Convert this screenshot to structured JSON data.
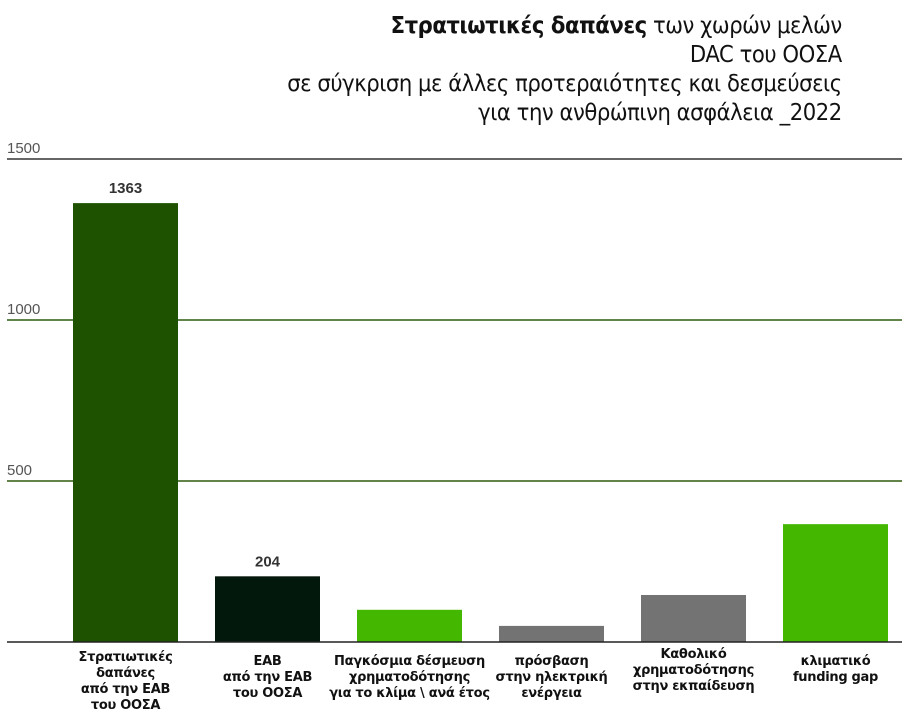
{
  "chart_data": {
    "type": "bar",
    "title_bold": "Στρατιωτικές δαπάνες",
    "title_rest": " των χωρών μελών",
    "title_lines": [
      "DAC του ΟΟΣΑ",
      "σε σύγκριση με άλλες προτεραιότητες και δεσμεύσεις",
      "για την ανθρώπινη ασφάλεια _2022"
    ],
    "categories": [
      [
        "Στρατιωτικές",
        "δαπάνες",
        "από την ΕΑΒ",
        "του ΟΟΣΑ"
      ],
      [
        "ΕΑΒ",
        "από την ΕΑΒ",
        "του ΟΟΣΑ"
      ],
      [
        "Παγκόσμια δέσμευση",
        "χρηματοδότησης",
        "για το κλίμα \\ ανά έτος"
      ],
      [
        "πρόσβαση",
        "στην ηλεκτρική",
        "ενέργεια"
      ],
      [
        "Καθολικό",
        "χρηματοδότησης",
        "στην εκπαίδευση"
      ],
      [
        "κλιματικό",
        "funding gap"
      ]
    ],
    "values": [
      1363,
      204,
      100,
      50,
      146,
      366
    ],
    "data_labels": [
      "1363",
      "204",
      null,
      null,
      null,
      null
    ],
    "colors": [
      "#1f5200",
      "#03180c",
      "#44b800",
      "#737373",
      "#737373",
      "#44b800"
    ],
    "yticks": [
      500,
      1000,
      1500
    ],
    "ylim": [
      0,
      1500
    ],
    "grid": true
  }
}
